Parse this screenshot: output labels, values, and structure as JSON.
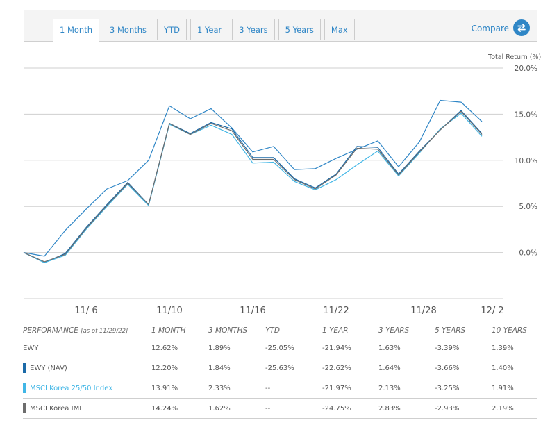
{
  "tabs": [
    "1 Month",
    "3 Months",
    "YTD",
    "1 Year",
    "3 Years",
    "5 Years",
    "Max"
  ],
  "active_tab": "1 Month",
  "compare_label": "Compare",
  "colors": {
    "ewy": "#2f86c6",
    "ewy_nav": "#1b6aa8",
    "msci_25_50": "#41b6e6",
    "msci_imi": "#6d6d6d"
  },
  "chart_data": {
    "type": "line",
    "ylabel": "Total Return (%)",
    "ylim": [
      -5,
      20
    ],
    "yticks": [
      0,
      5,
      10,
      15,
      20
    ],
    "ytick_labels": [
      "0.0%",
      "5.0%",
      "10.0%",
      "15.0%",
      "20.0%"
    ],
    "xlim": [
      0,
      23
    ],
    "xticks": [
      3,
      7,
      11,
      15,
      19.2,
      22.5
    ],
    "xtick_labels": [
      "11/ 6",
      "11/10",
      "11/16",
      "11/22",
      "11/28",
      "12/ 2"
    ],
    "x": [
      0,
      1,
      2,
      3,
      4,
      5,
      6,
      7,
      8,
      9,
      10,
      11,
      12,
      13,
      14,
      15,
      16,
      17,
      18,
      19,
      20,
      21,
      22,
      23
    ],
    "series": [
      {
        "name": "EWY",
        "color": "#2f86c6",
        "values": [
          0,
          -0.4,
          2.4,
          4.7,
          6.9,
          7.8,
          10.0,
          15.9,
          14.5,
          15.6,
          13.5,
          10.9,
          11.5,
          9.0,
          9.1,
          10.2,
          11.2,
          12.1,
          9.3,
          12.0,
          16.5,
          16.3,
          14.2,
          null
        ]
      },
      {
        "name": "EWY (NAV)",
        "color": "#1b6aa8",
        "values": [
          0,
          -1.1,
          -0.1,
          2.7,
          5.2,
          7.6,
          5.2,
          14.0,
          12.9,
          14.1,
          13.4,
          10.3,
          10.3,
          8.0,
          7.0,
          8.5,
          11.5,
          11.4,
          8.5,
          11.0,
          13.3,
          15.4,
          12.9,
          null
        ]
      },
      {
        "name": "MSCI Korea 25/50 Index",
        "color": "#41b6e6",
        "values": [
          0,
          -1.1,
          -0.3,
          2.5,
          5.0,
          7.4,
          5.1,
          13.9,
          12.8,
          13.8,
          12.8,
          9.7,
          9.8,
          7.7,
          6.8,
          7.9,
          9.5,
          11.0,
          8.3,
          10.8,
          13.4,
          15.1,
          12.6,
          null
        ]
      },
      {
        "name": "MSCI Korea IMI",
        "color": "#6d6d6d",
        "values": [
          0,
          -1.0,
          -0.2,
          2.6,
          5.1,
          7.5,
          5.2,
          14.0,
          12.8,
          14.0,
          13.2,
          10.1,
          10.1,
          7.9,
          6.9,
          8.4,
          11.3,
          11.2,
          8.4,
          10.9,
          13.3,
          15.3,
          12.8,
          null
        ]
      }
    ]
  },
  "performance": {
    "title": "PERFORMANCE",
    "as_of": "[as of 11/29/22]",
    "columns": [
      "1 MONTH",
      "3 MONTHS",
      "YTD",
      "1 YEAR",
      "3 YEARS",
      "5 YEARS",
      "10 YEARS"
    ],
    "rows": [
      {
        "name": "EWY",
        "values": [
          "12.62%",
          "1.89%",
          "-25.05%",
          "-21.94%",
          "1.63%",
          "-3.39%",
          "1.39%"
        ]
      },
      {
        "name": "EWY (NAV)",
        "values": [
          "12.20%",
          "1.84%",
          "-25.63%",
          "-22.62%",
          "1.64%",
          "-3.66%",
          "1.40%"
        ]
      },
      {
        "name": "MSCI Korea 25/50 Index",
        "values": [
          "13.91%",
          "2.33%",
          "--",
          "-21.97%",
          "2.13%",
          "-3.25%",
          "1.91%"
        ]
      },
      {
        "name": "MSCI Korea IMI",
        "values": [
          "14.24%",
          "1.62%",
          "--",
          "-24.75%",
          "2.83%",
          "-2.93%",
          "2.19%"
        ]
      }
    ]
  }
}
